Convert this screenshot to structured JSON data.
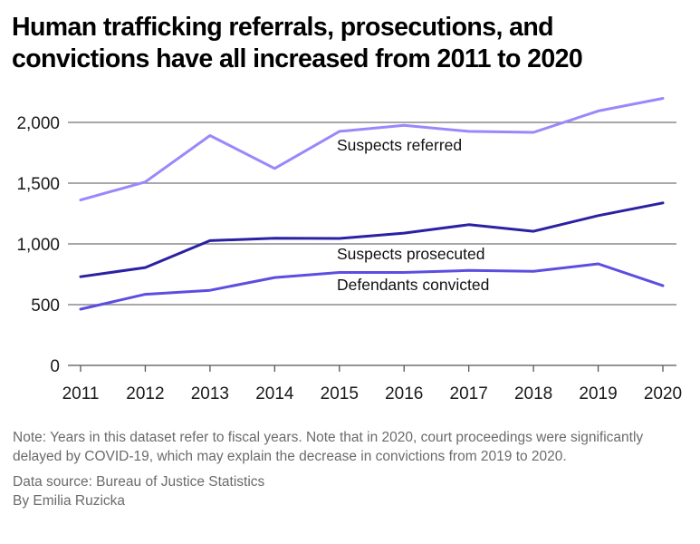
{
  "chart_data": {
    "type": "line",
    "title": "Human trafficking referrals, prosecutions, and convictions have all increased from 2011 to 2020",
    "xlabel": "",
    "ylabel": "",
    "x": [
      "2011",
      "2012",
      "2013",
      "2014",
      "2015",
      "2016",
      "2017",
      "2018",
      "2019",
      "2020"
    ],
    "ylim": [
      0,
      2000
    ],
    "yticks": [
      0,
      500,
      1000,
      1500,
      2000
    ],
    "ytick_labels": [
      "0",
      "500",
      "1,000",
      "1,500",
      "2,000"
    ],
    "grid": true,
    "legend": "inline-labels",
    "series": [
      {
        "name": "Suspects referred",
        "color": "#9b87fb",
        "values": [
          1361,
          1510,
          1892,
          1621,
          1926,
          1975,
          1926,
          1918,
          2094,
          2198
        ]
      },
      {
        "name": "Suspects prosecuted",
        "color": "#2a21a3",
        "values": [
          730,
          805,
          1027,
          1047,
          1045,
          1089,
          1158,
          1104,
          1233,
          1337
        ]
      },
      {
        "name": "Defendants convicted",
        "color": "#5b4ee0",
        "values": [
          463,
          585,
          618,
          723,
          765,
          765,
          781,
          774,
          836,
          656
        ]
      }
    ]
  },
  "notes": {
    "note": "Note: Years in this dataset refer to fiscal years. Note that in 2020, court proceedings were significantly delayed by COVID-19, which may explain the decrease in convictions from 2019 to 2020.",
    "source": "Data source: Bureau of Justice Statistics",
    "byline": "By Emilia Ruzicka"
  }
}
